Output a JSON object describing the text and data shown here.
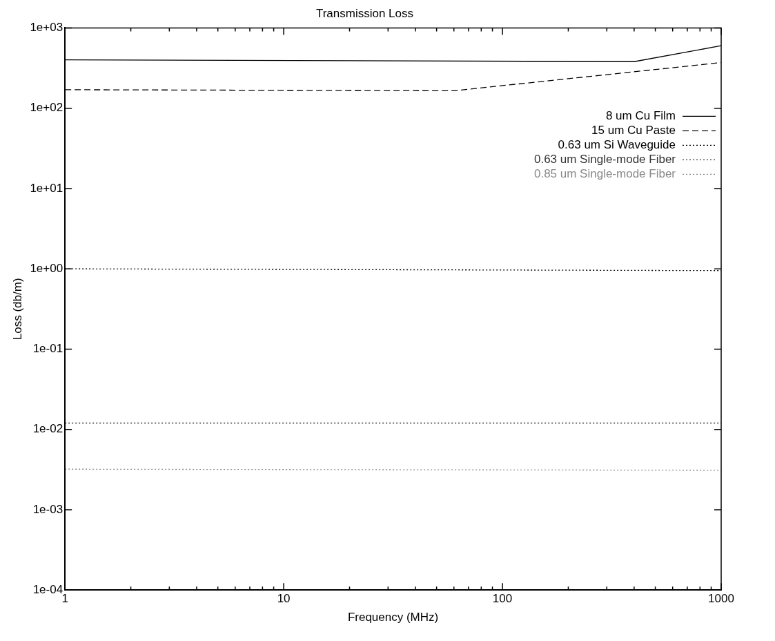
{
  "chart_data": {
    "type": "line",
    "title": "Transmission Loss",
    "xlabel": "Frequency (MHz)",
    "ylabel": "Loss (db/m)",
    "log": "xy",
    "grid": false,
    "legend": "top right",
    "xlim": [
      1,
      1000
    ],
    "ylim": [
      0.0001,
      1000
    ],
    "xticks": [
      1,
      {
        "value": 2,
        "label": null
      },
      {
        "value": 3,
        "label": null
      },
      {
        "value": 4,
        "label": null
      },
      {
        "value": 5,
        "label": null
      },
      {
        "value": 6,
        "label": null
      },
      {
        "value": 7,
        "label": null
      },
      {
        "value": 8,
        "label": null
      },
      {
        "value": 9,
        "label": null
      },
      10,
      {
        "value": 20,
        "label": null
      },
      {
        "value": 30,
        "label": null
      },
      {
        "value": 40,
        "label": null
      },
      {
        "value": 50,
        "label": null
      },
      {
        "value": 60,
        "label": null
      },
      {
        "value": 70,
        "label": null
      },
      {
        "value": 80,
        "label": null
      },
      {
        "value": 90,
        "label": null
      },
      100,
      {
        "value": 200,
        "label": null
      },
      {
        "value": 300,
        "label": null
      },
      {
        "value": 400,
        "label": null
      },
      {
        "value": 500,
        "label": null
      },
      {
        "value": 600,
        "label": null
      },
      {
        "value": 700,
        "label": null
      },
      {
        "value": 800,
        "label": null
      },
      {
        "value": 900,
        "label": null
      },
      1000
    ],
    "yticks": [
      {
        "value": 0.0001,
        "label": "1e-04"
      },
      {
        "value": 0.001,
        "label": "1e-03"
      },
      {
        "value": 0.01,
        "label": "1e-02"
      },
      {
        "value": 0.1,
        "label": "1e-01"
      },
      {
        "value": 1,
        "label": "1e+00"
      },
      {
        "value": 10,
        "label": "1e+01"
      },
      {
        "value": 100,
        "label": "1e+02"
      },
      {
        "value": 1000,
        "label": "1e+03"
      }
    ],
    "series": [
      {
        "name": "8 um Cu Film",
        "color": "#000000",
        "line_style": "solid",
        "x": [
          1,
          400,
          1000
        ],
        "values": [
          400,
          380,
          600
        ]
      },
      {
        "name": "15 um Cu Paste",
        "color": "#000000",
        "line_style": "dashed",
        "x": [
          1,
          60,
          1000
        ],
        "values": [
          170,
          165,
          370
        ]
      },
      {
        "name": "0.63 um Si Waveguide",
        "color": "#000000",
        "line_style": "dotted",
        "x": [
          1,
          1000
        ],
        "values": [
          1,
          0.95
        ]
      },
      {
        "name": "0.63 um Single-mode Fiber",
        "color": "#333333",
        "line_style": "dotted",
        "x": [
          1,
          1000
        ],
        "values": [
          0.012,
          0.012
        ]
      },
      {
        "name": "0.85 um Single-mode Fiber",
        "color": "#888888",
        "line_style": "dotted",
        "x": [
          1,
          1000
        ],
        "values": [
          0.0032,
          0.0031
        ]
      }
    ]
  }
}
